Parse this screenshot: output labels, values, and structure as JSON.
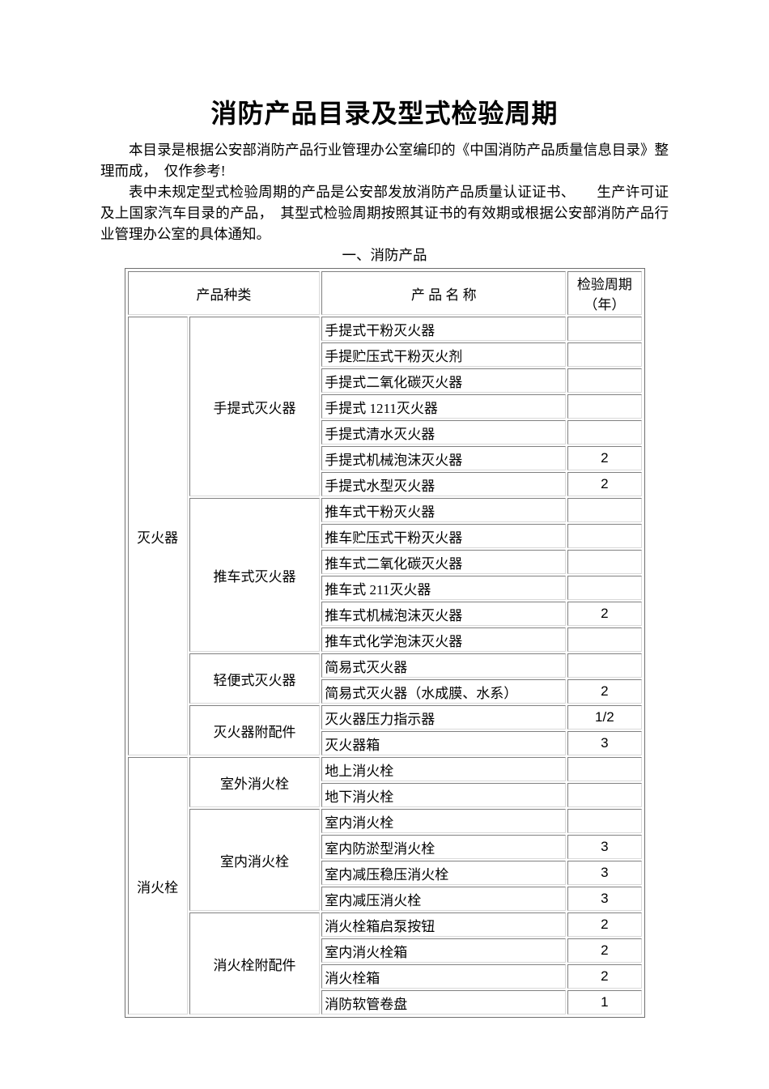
{
  "page": {
    "title": "消防产品目录及型式检验周期",
    "paragraphs": [
      "本目录是根据公安部消防产品行业管理办公室编印的《中国消防产品质量信息目录》整理而成，　仅作参考!",
      "表中未规定型式检验周期的产品是公安部发放消防产品质量认证证书、　　生产许可证及上国家汽车目录的产品，　其型式检验周期按照其证书的有效期或根据公安部消防产品行业管理办公室的具体通知。"
    ],
    "section_heading": "一、消防产品"
  },
  "table": {
    "headers": {
      "category": "产品种类",
      "product": "产 品 名 称",
      "period": "检验周期（年）"
    },
    "groups": [
      {
        "category": "灭火器",
        "subgroups": [
          {
            "name": "手提式灭火器",
            "products": [
              {
                "name": "手提式干粉灭火器",
                "period": ""
              },
              {
                "name": "手提贮压式干粉灭火剂",
                "period": ""
              },
              {
                "name": "手提式二氧化碳灭火器",
                "period": ""
              },
              {
                "name": "手提式 1211灭火器",
                "period": ""
              },
              {
                "name": "手提式清水灭火器",
                "period": ""
              },
              {
                "name": "手提式机械泡沫灭火器",
                "period": "2"
              },
              {
                "name": "手提式水型灭火器",
                "period": "2"
              }
            ]
          },
          {
            "name": "推车式灭火器",
            "products": [
              {
                "name": "推车式干粉灭火器",
                "period": ""
              },
              {
                "name": "推车贮压式干粉灭火器",
                "period": ""
              },
              {
                "name": "推车式二氧化碳灭火器",
                "period": ""
              },
              {
                "name": "推车式 211灭火器",
                "period": ""
              },
              {
                "name": "推车式机械泡沫灭火器",
                "period": "2"
              },
              {
                "name": "推车式化学泡沫灭火器",
                "period": ""
              }
            ]
          },
          {
            "name": "轻便式灭火器",
            "products": [
              {
                "name": "简易式灭火器",
                "period": ""
              },
              {
                "name": "简易式灭火器（水成膜、水系）",
                "period": "2"
              }
            ]
          },
          {
            "name": "灭火器附配件",
            "products": [
              {
                "name": "灭火器压力指示器",
                "period": "1/2"
              },
              {
                "name": "灭火器箱",
                "period": "3"
              }
            ]
          }
        ]
      },
      {
        "category": "消火栓",
        "subgroups": [
          {
            "name": "室外消火栓",
            "products": [
              {
                "name": "地上消火栓",
                "period": ""
              },
              {
                "name": "地下消火栓",
                "period": ""
              }
            ]
          },
          {
            "name": "室内消火栓",
            "products": [
              {
                "name": "室内消火栓",
                "period": ""
              },
              {
                "name": "室内防淤型消火栓",
                "period": "3"
              },
              {
                "name": "室内减压稳压消火栓",
                "period": "3"
              },
              {
                "name": "室内减压消火栓",
                "period": "3"
              }
            ]
          },
          {
            "name": "消火栓附配件",
            "products": [
              {
                "name": "消火栓箱启泵按钮",
                "period": "2"
              },
              {
                "name": "室内消火栓箱",
                "period": "2"
              },
              {
                "name": "消火栓箱",
                "period": "2"
              },
              {
                "name": "消防软管卷盘",
                "period": "1"
              }
            ]
          }
        ]
      }
    ]
  }
}
